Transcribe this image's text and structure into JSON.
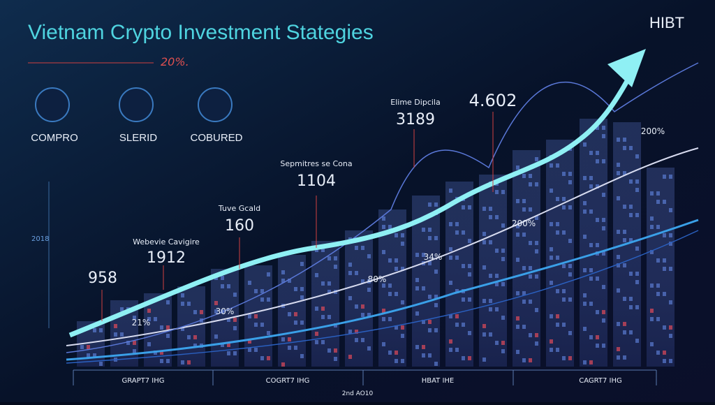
{
  "header": {
    "title": "Vietnam Crypto Investment Stategies",
    "subtitle": "20%.",
    "logo": "HIBT"
  },
  "features": [
    {
      "label": "COMPRO"
    },
    {
      "label": "SLERID"
    },
    {
      "label": "COBURED"
    }
  ],
  "callouts": [
    {
      "value": "958"
    },
    {
      "caption": "Webevie Cavigire",
      "value": "1912"
    },
    {
      "caption": "Tuve Gcald",
      "value": "160"
    },
    {
      "caption": "Sepmitres se Cona",
      "value": "1104"
    },
    {
      "caption": "Elime Dipcila",
      "value": "3189"
    },
    {
      "value": "4.602"
    }
  ],
  "percent_labels": [
    "21%",
    "30%",
    "80%",
    "34%",
    "200%",
    "200%"
  ],
  "axis_label": "2018",
  "bottom_labels": [
    "GRAPT7 IHG",
    "COGRT7 IHG",
    "HBAT IHE",
    "CAGRT7 IHG"
  ],
  "footer": "2nd AO10"
}
